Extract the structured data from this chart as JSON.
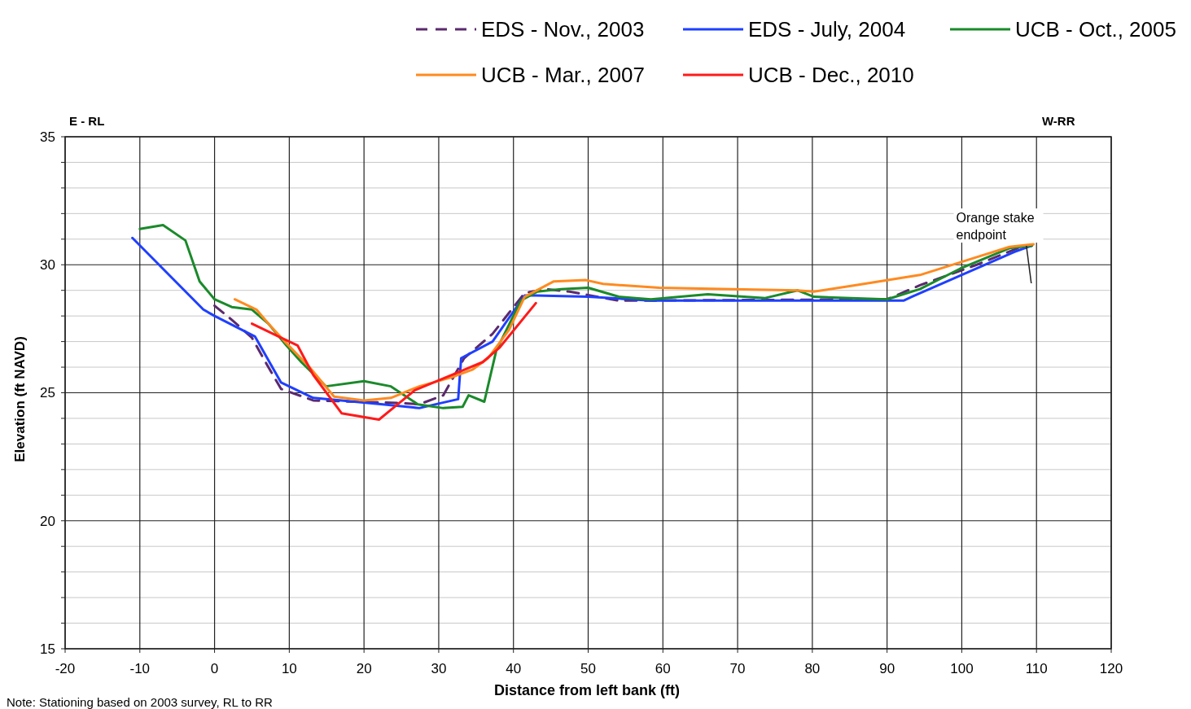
{
  "chart_data": {
    "type": "line",
    "xlabel": "Distance from left bank (ft)",
    "ylabel": "Elevation (ft NAVD)",
    "xlim": [
      -20,
      120
    ],
    "ylim": [
      15,
      35
    ],
    "xticks": [
      -20,
      -10,
      0,
      10,
      20,
      30,
      40,
      50,
      60,
      70,
      80,
      90,
      100,
      110,
      120
    ],
    "yticks": [
      15,
      {
        "value": 16,
        "label": null
      },
      {
        "value": 17,
        "label": null
      },
      {
        "value": 18,
        "label": null
      },
      {
        "value": 19,
        "label": null
      },
      20,
      {
        "value": 21,
        "label": null
      },
      {
        "value": 22,
        "label": null
      },
      {
        "value": 23,
        "label": null
      },
      {
        "value": 24,
        "label": null
      },
      25,
      {
        "value": 26,
        "label": null
      },
      {
        "value": 27,
        "label": null
      },
      {
        "value": 28,
        "label": null
      },
      {
        "value": 29,
        "label": null
      },
      30,
      {
        "value": 31,
        "label": null
      },
      {
        "value": 32,
        "label": null
      },
      {
        "value": 33,
        "label": null
      },
      {
        "value": 34,
        "label": null
      },
      35
    ],
    "grid": true,
    "legend": "top",
    "marker": "none",
    "annotations": [
      "E - RL",
      "W-RR",
      {
        "text": "Orange stake endpoint",
        "x": 109.6,
        "y": 30.8
      },
      "Note: Stationing based on 2003 survey, RL to RR"
    ],
    "series": [
      {
        "name": "EDS - Nov., 2003",
        "color": "#5b2a6e",
        "line_style": "dashed",
        "x": [
          0,
          2.3,
          5,
          7.2,
          8.9,
          13.2,
          24.7,
          27.4,
          30.6,
          33.4,
          37.2,
          41.5,
          44.3,
          47.5,
          54.1,
          56.3,
          90,
          94.4,
          102,
          107.5,
          109.4
        ],
        "values": [
          28.4,
          27.85,
          27.15,
          26,
          25.15,
          24.7,
          24.6,
          24.55,
          24.9,
          26.35,
          27.3,
          28.9,
          29.05,
          28.95,
          28.6,
          28.6,
          28.65,
          29.2,
          30,
          30.65,
          30.75
        ]
      },
      {
        "name": "EDS - July, 2004",
        "color": "#1f3fff",
        "line_style": "solid",
        "x": [
          -11,
          -1.5,
          0,
          5.4,
          8.9,
          13.2,
          17,
          22.5,
          27.4,
          29.6,
          32.6,
          33,
          37.2,
          41.5,
          43,
          50,
          58.4,
          92.2,
          93.3,
          107,
          109.4
        ],
        "values": [
          31.05,
          28.25,
          28,
          27.2,
          25.4,
          24.8,
          24.7,
          24.55,
          24.4,
          24.55,
          24.75,
          26.35,
          27,
          28.8,
          28.8,
          28.75,
          28.6,
          28.6,
          28.75,
          30.5,
          30.75
        ]
      },
      {
        "name": "UCB - Oct., 2005",
        "color": "#1a8a2a",
        "line_style": "solid",
        "x": [
          -10,
          -6.9,
          -3.9,
          -2,
          0,
          2.3,
          5,
          7.2,
          9.6,
          11.6,
          14.9,
          20,
          23.6,
          27.2,
          30.6,
          33.2,
          34,
          36.1,
          37.7,
          41,
          43.2,
          46.4,
          50,
          54.1,
          58.4,
          66,
          73.7,
          78,
          80.2,
          90,
          94.4,
          99.8,
          106.4,
          109.4
        ],
        "values": [
          31.4,
          31.55,
          30.95,
          29.35,
          28.65,
          28.35,
          28.25,
          27.7,
          26.85,
          26.2,
          25.25,
          25.45,
          25.25,
          24.55,
          24.4,
          24.45,
          24.9,
          24.65,
          26.65,
          28.6,
          28.95,
          29.05,
          29.1,
          28.75,
          28.65,
          28.85,
          28.7,
          29,
          28.75,
          28.65,
          29.05,
          29.85,
          30.65,
          30.75
        ]
      },
      {
        "name": "UCB - Mar., 2007",
        "color": "#ff8a1f",
        "line_style": "solid",
        "x": [
          2.7,
          5.6,
          7.2,
          9.4,
          12.7,
          16,
          20,
          23.6,
          27.4,
          31.7,
          34.5,
          36.6,
          39.4,
          41.5,
          45.4,
          49.7,
          52,
          59.5,
          69.3,
          78,
          80.2,
          85.7,
          94.4,
          102,
          106.4,
          109.6
        ],
        "values": [
          28.65,
          28.25,
          27.7,
          27,
          26,
          24.85,
          24.7,
          24.8,
          25.25,
          25.6,
          25.9,
          26.35,
          27.45,
          28.75,
          29.35,
          29.4,
          29.25,
          29.1,
          29.05,
          29,
          28.95,
          29.2,
          29.6,
          30.3,
          30.7,
          30.8
        ]
      },
      {
        "name": "UCB - Dec., 2010",
        "color": "#ff1a1a",
        "line_style": "solid",
        "x": [
          5,
          8.9,
          11.1,
          13.2,
          17,
          22,
          26.8,
          32.6,
          35.9,
          38.1,
          43
        ],
        "values": [
          27.7,
          27.15,
          26.85,
          25.7,
          24.2,
          23.95,
          25.1,
          25.8,
          26.2,
          26.75,
          28.5
        ]
      }
    ]
  }
}
